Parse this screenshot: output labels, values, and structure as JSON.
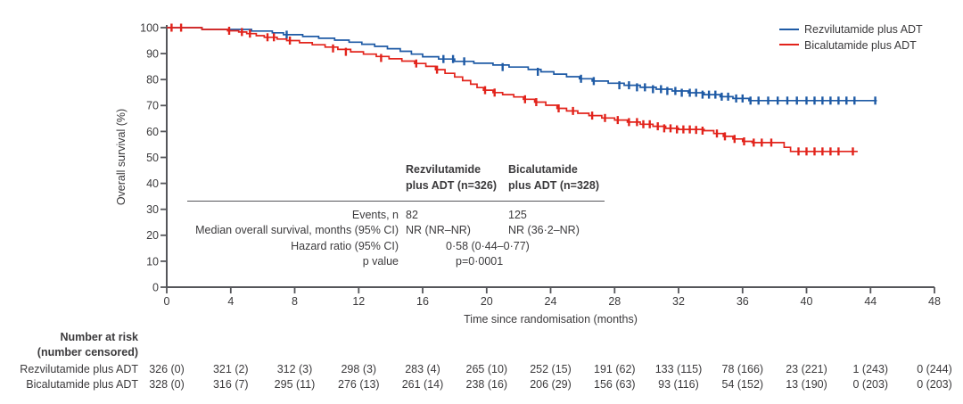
{
  "chart_data": {
    "type": "line",
    "subtype": "kaplan-meier-step",
    "x_label": "Time since randomisation (months)",
    "y_label": "Overall survival (%)",
    "x_range": [
      0,
      48
    ],
    "y_range": [
      0,
      100
    ],
    "x_ticks": [
      0,
      4,
      8,
      12,
      16,
      20,
      24,
      28,
      32,
      36,
      40,
      44,
      48
    ],
    "y_ticks": [
      100,
      90,
      80,
      70,
      60,
      50,
      40,
      30,
      20,
      10,
      0
    ],
    "grid": false,
    "legend_position": "top-right",
    "series": [
      {
        "name": "Rezvilutamide plus ADT",
        "color": "#1e5aa5",
        "steps": [
          [
            0,
            100
          ],
          [
            2.2,
            99.3
          ],
          [
            5.3,
            98.7
          ],
          [
            6.6,
            98.0
          ],
          [
            7.3,
            97.3
          ],
          [
            8.5,
            96.6
          ],
          [
            9.5,
            95.9
          ],
          [
            10.5,
            95.2
          ],
          [
            11.4,
            94.4
          ],
          [
            12.2,
            93.6
          ],
          [
            13.0,
            92.8
          ],
          [
            13.8,
            91.9
          ],
          [
            14.6,
            90.9
          ],
          [
            15.3,
            89.8
          ],
          [
            16.0,
            88.8
          ],
          [
            17.0,
            87.9
          ],
          [
            18.0,
            87.0
          ],
          [
            19.2,
            86.3
          ],
          [
            20.4,
            85.6
          ],
          [
            21.4,
            84.8
          ],
          [
            22.6,
            83.9
          ],
          [
            23.4,
            83.0
          ],
          [
            24.2,
            82.1
          ],
          [
            25.0,
            81.1
          ],
          [
            25.8,
            80.3
          ],
          [
            26.6,
            79.4
          ],
          [
            27.6,
            78.6
          ],
          [
            28.6,
            77.8
          ],
          [
            29.6,
            77.0
          ],
          [
            30.6,
            76.3
          ],
          [
            31.6,
            75.6
          ],
          [
            32.6,
            74.9
          ],
          [
            33.6,
            74.2
          ],
          [
            34.6,
            73.4
          ],
          [
            35.4,
            72.7
          ],
          [
            36.4,
            71.9
          ],
          [
            44.4,
            71.9
          ]
        ],
        "censors": [
          [
            7.5,
            97.3
          ],
          [
            17.3,
            87.9
          ],
          [
            17.9,
            87.9
          ],
          [
            18.6,
            87.0
          ],
          [
            21.0,
            84.8
          ],
          [
            23.2,
            83.0
          ],
          [
            25.9,
            80.3
          ],
          [
            26.7,
            79.4
          ],
          [
            28.3,
            77.8
          ],
          [
            28.9,
            77.8
          ],
          [
            29.4,
            77.0
          ],
          [
            29.9,
            77.0
          ],
          [
            30.4,
            76.3
          ],
          [
            30.9,
            76.3
          ],
          [
            31.3,
            75.6
          ],
          [
            31.8,
            75.6
          ],
          [
            32.2,
            74.9
          ],
          [
            32.7,
            74.9
          ],
          [
            33.1,
            74.9
          ],
          [
            33.5,
            74.2
          ],
          [
            33.9,
            74.2
          ],
          [
            34.3,
            74.2
          ],
          [
            34.7,
            73.4
          ],
          [
            35.1,
            73.4
          ],
          [
            35.6,
            72.7
          ],
          [
            36.0,
            72.7
          ],
          [
            36.5,
            71.9
          ],
          [
            37.0,
            71.9
          ],
          [
            37.6,
            71.9
          ],
          [
            38.2,
            71.9
          ],
          [
            38.8,
            71.9
          ],
          [
            39.4,
            71.9
          ],
          [
            40.0,
            71.9
          ],
          [
            40.5,
            71.9
          ],
          [
            41.0,
            71.9
          ],
          [
            41.5,
            71.9
          ],
          [
            42.0,
            71.9
          ],
          [
            42.5,
            71.9
          ],
          [
            43.0,
            71.9
          ],
          [
            44.3,
            71.9
          ]
        ]
      },
      {
        "name": "Bicalutamide plus ADT",
        "color": "#e2231b",
        "steps": [
          [
            0,
            100
          ],
          [
            2.2,
            99.3
          ],
          [
            3.8,
            98.8
          ],
          [
            4.5,
            98.3
          ],
          [
            5.0,
            97.7
          ],
          [
            5.6,
            96.9
          ],
          [
            6.1,
            96.3
          ],
          [
            6.9,
            95.6
          ],
          [
            7.5,
            95.0
          ],
          [
            8.3,
            94.2
          ],
          [
            9.1,
            93.4
          ],
          [
            9.9,
            92.5
          ],
          [
            10.7,
            91.6
          ],
          [
            11.5,
            90.7
          ],
          [
            12.3,
            89.8
          ],
          [
            13.1,
            88.9
          ],
          [
            13.9,
            88.0
          ],
          [
            14.7,
            87.1
          ],
          [
            15.5,
            86.2
          ],
          [
            16.2,
            85.1
          ],
          [
            16.8,
            83.8
          ],
          [
            17.4,
            82.4
          ],
          [
            18.0,
            81.0
          ],
          [
            18.5,
            79.6
          ],
          [
            19.0,
            78.2
          ],
          [
            19.4,
            76.9
          ],
          [
            19.8,
            75.9
          ],
          [
            20.4,
            75.0
          ],
          [
            21.0,
            74.2
          ],
          [
            21.7,
            73.3
          ],
          [
            22.3,
            72.4
          ],
          [
            23.0,
            71.3
          ],
          [
            23.7,
            70.1
          ],
          [
            24.4,
            68.9
          ],
          [
            25.0,
            67.9
          ],
          [
            25.7,
            67.0
          ],
          [
            26.4,
            66.1
          ],
          [
            27.2,
            65.2
          ],
          [
            28.0,
            64.4
          ],
          [
            28.8,
            63.6
          ],
          [
            29.6,
            62.8
          ],
          [
            30.4,
            62.0
          ],
          [
            31.2,
            61.2
          ],
          [
            32.0,
            60.8
          ],
          [
            33.6,
            60.3
          ],
          [
            34.2,
            59.2
          ],
          [
            34.8,
            58.1
          ],
          [
            35.4,
            57.1
          ],
          [
            36.0,
            56.2
          ],
          [
            36.6,
            55.7
          ],
          [
            38.6,
            53.9
          ],
          [
            39.0,
            52.3
          ],
          [
            43.2,
            52.3
          ]
        ],
        "censors": [
          [
            0.3,
            100
          ],
          [
            0.9,
            100
          ],
          [
            3.9,
            98.8
          ],
          [
            4.7,
            98.3
          ],
          [
            5.2,
            97.7
          ],
          [
            6.3,
            96.3
          ],
          [
            6.7,
            96.3
          ],
          [
            7.7,
            95.0
          ],
          [
            10.4,
            92.0
          ],
          [
            11.2,
            90.7
          ],
          [
            13.4,
            88.3
          ],
          [
            15.6,
            86.2
          ],
          [
            16.9,
            83.8
          ],
          [
            19.9,
            75.9
          ],
          [
            20.5,
            75.0
          ],
          [
            22.4,
            72.4
          ],
          [
            23.1,
            71.3
          ],
          [
            24.5,
            68.9
          ],
          [
            25.4,
            67.9
          ],
          [
            26.6,
            66.1
          ],
          [
            27.4,
            65.2
          ],
          [
            28.2,
            64.4
          ],
          [
            28.9,
            63.6
          ],
          [
            29.4,
            63.6
          ],
          [
            29.8,
            62.8
          ],
          [
            30.2,
            62.8
          ],
          [
            30.7,
            62.0
          ],
          [
            31.1,
            61.2
          ],
          [
            31.5,
            61.2
          ],
          [
            31.9,
            60.8
          ],
          [
            32.3,
            60.8
          ],
          [
            32.7,
            60.8
          ],
          [
            33.1,
            60.6
          ],
          [
            33.5,
            60.3
          ],
          [
            34.4,
            59.2
          ],
          [
            34.9,
            58.1
          ],
          [
            35.5,
            57.1
          ],
          [
            36.1,
            56.2
          ],
          [
            36.7,
            55.7
          ],
          [
            37.2,
            55.7
          ],
          [
            37.8,
            55.7
          ],
          [
            39.5,
            52.3
          ],
          [
            40.0,
            52.3
          ],
          [
            40.5,
            52.3
          ],
          [
            41.0,
            52.3
          ],
          [
            41.5,
            52.3
          ],
          [
            42.0,
            52.3
          ],
          [
            42.9,
            52.3
          ]
        ]
      }
    ]
  },
  "legend": {
    "items": [
      {
        "label": "Rezvilutamide plus ADT",
        "color": "#1e5aa5"
      },
      {
        "label": "Bicalutamide plus ADT",
        "color": "#e2231b"
      }
    ]
  },
  "stats_table": {
    "columns": [
      {
        "line1": "Rezvilutamide",
        "line2": "plus ADT (n=326)"
      },
      {
        "line1": "Bicalutamide",
        "line2": "plus ADT (n=328)"
      }
    ],
    "rows": [
      {
        "label": "Events, n",
        "v1": "82",
        "v2": "125"
      },
      {
        "label": "Median overall survival, months (95% CI)",
        "v1": "NR (NR–NR)",
        "v2": "NR (36·2–NR)"
      },
      {
        "label": "Hazard ratio (95% CI)",
        "span": "0·58 (0·44–0·77)"
      },
      {
        "label": "p value",
        "span": "p=0·0001"
      }
    ]
  },
  "risk_table": {
    "header_line1": "Number at risk",
    "header_line2": "(number censored)",
    "rows": [
      {
        "label": "Rezvilutamide plus ADT",
        "values": [
          "326 (0)",
          "321 (2)",
          "312 (3)",
          "298 (3)",
          "283 (4)",
          "265 (10)",
          "252 (15)",
          "191 (62)",
          "133 (115)",
          "78 (166)",
          "23 (221)",
          "1 (243)",
          "0 (244)"
        ]
      },
      {
        "label": "Bicalutamide plus ADT",
        "values": [
          "328 (0)",
          "316 (7)",
          "295 (11)",
          "276 (13)",
          "261 (14)",
          "238 (16)",
          "206 (29)",
          "156 (63)",
          "93 (116)",
          "54 (152)",
          "13 (190)",
          "0 (203)",
          "0 (203)"
        ]
      }
    ]
  },
  "colors": {
    "rezvilutamide_line": "#1e5aa5",
    "bicalutamide_line": "#e2231b",
    "axis": "#55565a",
    "text": "#3b3a3c"
  }
}
